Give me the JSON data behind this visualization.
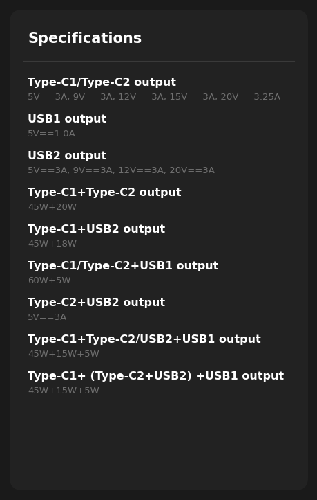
{
  "title": "Specifications",
  "bg_color": "#1a1a1a",
  "card_color": "#222222",
  "title_color": "#ffffff",
  "title_fontsize": 15,
  "header_color": "#ffffff",
  "header_fontsize": 11.5,
  "subtext_color": "#707070",
  "subtext_fontsize": 9.5,
  "separator_color": "#3a3a3a",
  "items": [
    {
      "header": "Type-C1/Type-C2 output",
      "subtext": "5V==3A, 9V==3A, 12V==3A, 15V==3A, 20V==3.25A"
    },
    {
      "header": "USB1 output",
      "subtext": "5V==1.0A"
    },
    {
      "header": "USB2 output",
      "subtext": "5V==3A, 9V==3A, 12V==3A, 20V==3A"
    },
    {
      "header": "Type-C1+Type-C2 output",
      "subtext": "45W+20W"
    },
    {
      "header": "Type-C1+USB2 output",
      "subtext": "45W+18W"
    },
    {
      "header": "Type-C1/Type-C2+USB1 output",
      "subtext": "60W+5W"
    },
    {
      "header": "Type-C2+USB2 output",
      "subtext": "5V==3A"
    },
    {
      "header": "Type-C1+Type-C2/USB2+USB1 output",
      "subtext": "45W+15W+5W"
    },
    {
      "header": "Type-C1+ (Type-C2+USB2) +USB1 output",
      "subtext": "45W+15W+5W"
    }
  ],
  "fig_width": 4.6,
  "fig_height": 7.22,
  "dpi": 100
}
